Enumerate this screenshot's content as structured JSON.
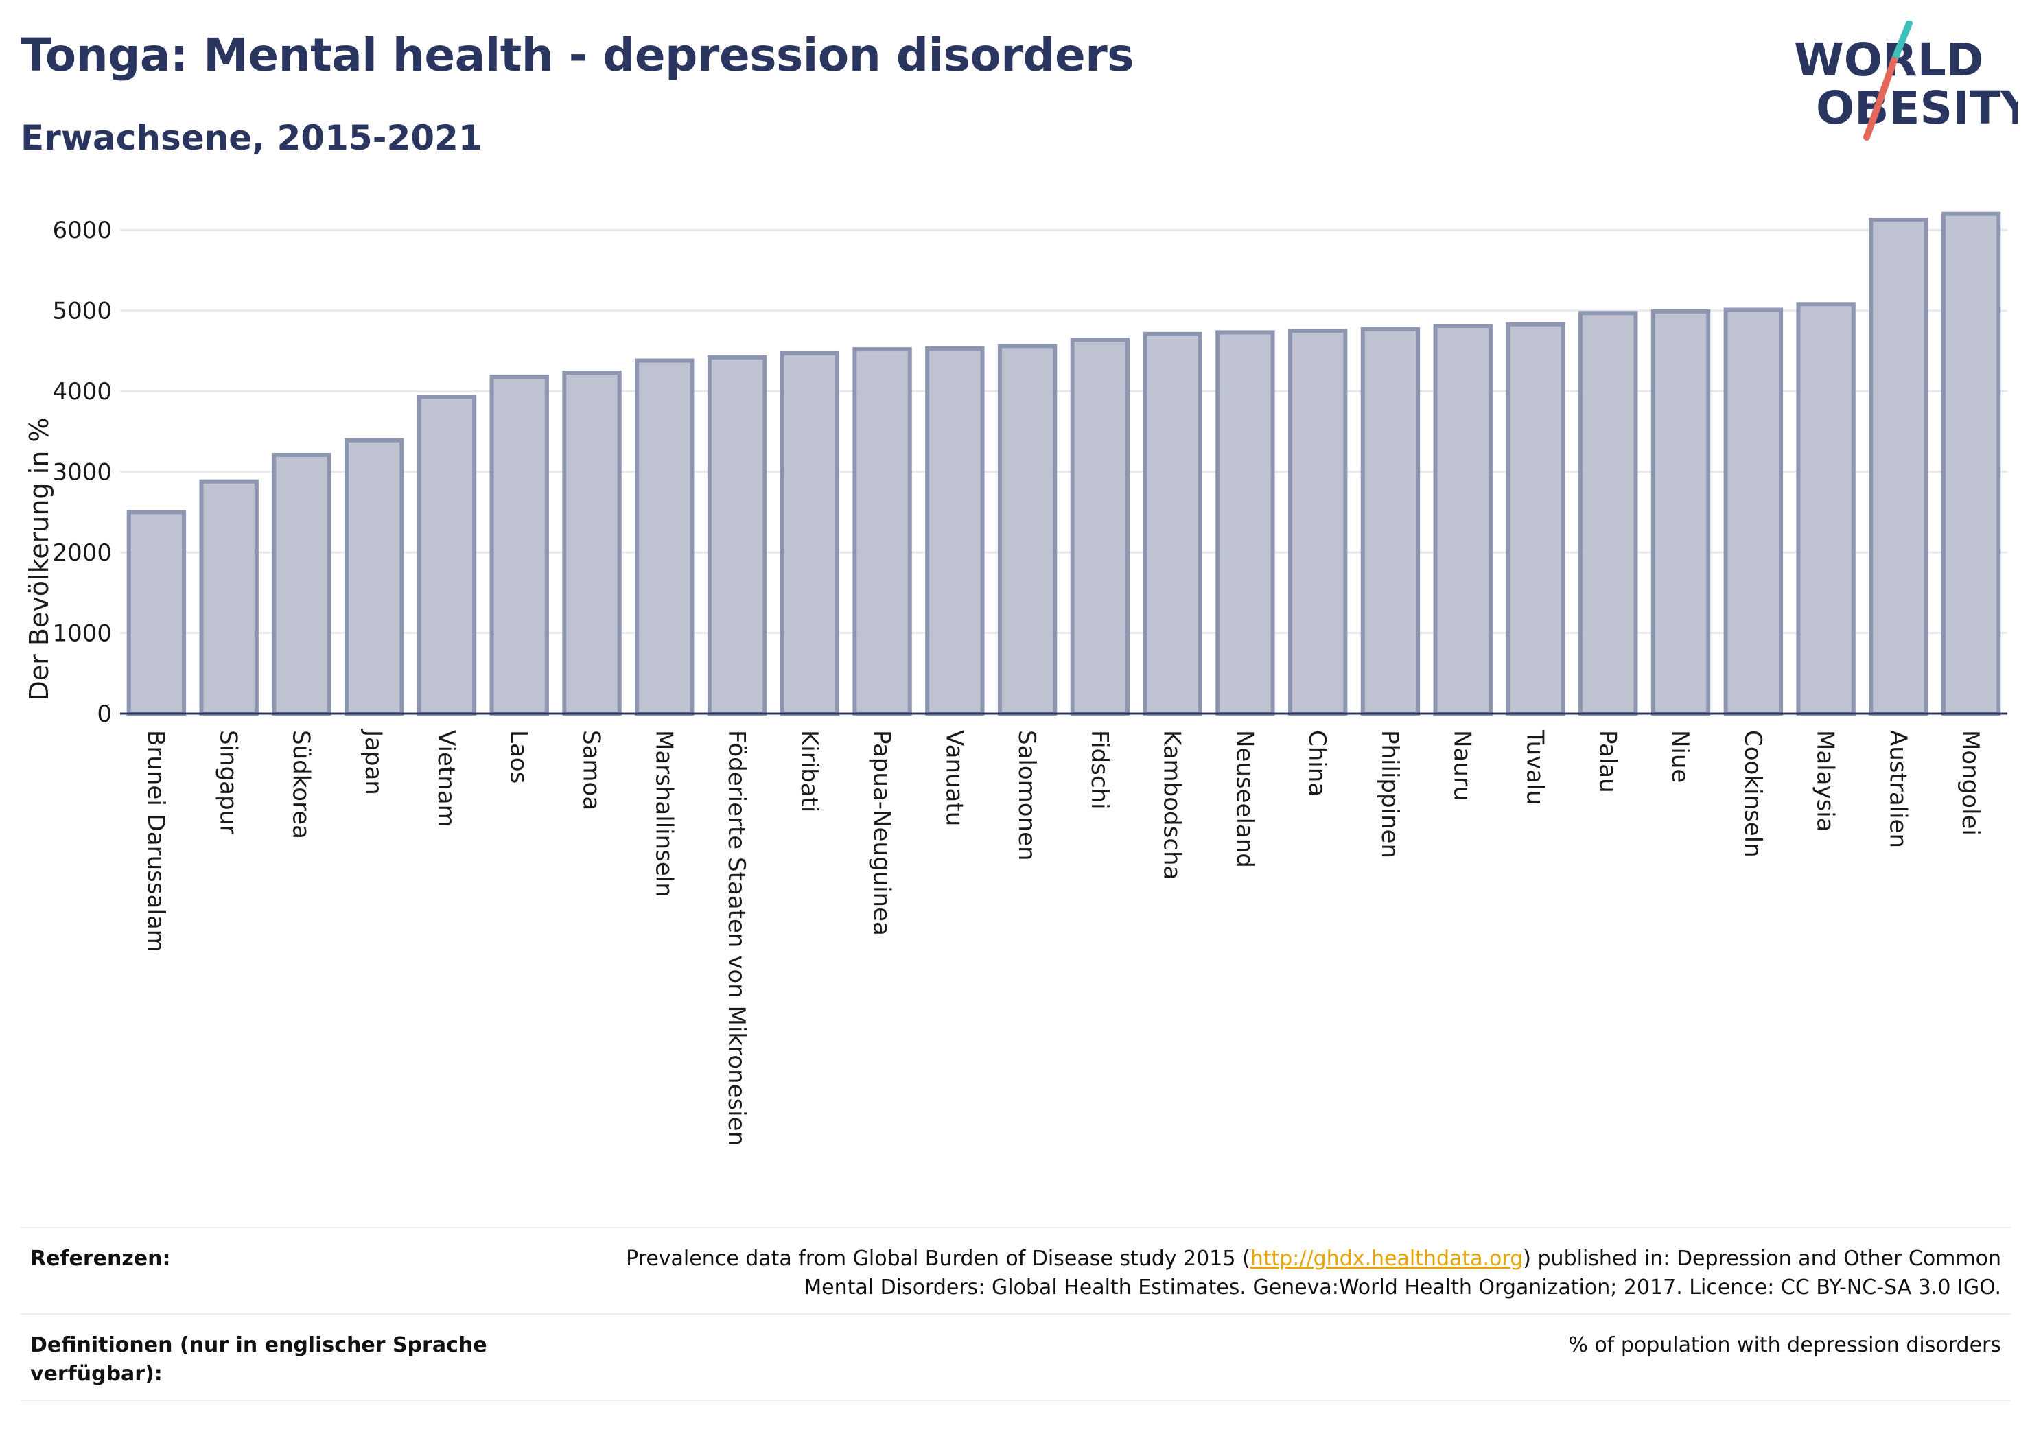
{
  "header": {
    "title": "Tonga: Mental health - depression disorders",
    "subtitle": "Erwachsene, 2015-2021"
  },
  "logo": {
    "line1": "WORLD",
    "line2": "OBESITY",
    "colors": {
      "text": "#2b3660",
      "slash_red": "#e4685a",
      "slash_teal": "#3fbfb9"
    }
  },
  "colors": {
    "bar_fill": "#bcc0cf",
    "bar_stroke": "#8e95b0",
    "grid": "#e6e8ee",
    "axis": "#2b3660"
  },
  "chart_data": {
    "type": "bar",
    "title": "Tonga: Mental health - depression disorders",
    "subtitle": "Erwachsene, 2015-2021",
    "xlabel": "",
    "ylabel": "Der Bevölkerung in %",
    "ylim": [
      0,
      6300
    ],
    "yticks": [
      0,
      1000,
      2000,
      3000,
      4000,
      5000,
      6000
    ],
    "grid": true,
    "categories": [
      "Brunei Darussalam",
      "Singapur",
      "Südkorea",
      "Japan",
      "Vietnam",
      "Laos",
      "Samoa",
      "Marshallinseln",
      "Föderierte Staaten von Mikronesien",
      "Kiribati",
      "Papua-Neuguinea",
      "Vanuatu",
      "Salomonen",
      "Fidschi",
      "Kambodscha",
      "Neuseeland",
      "China",
      "Philippinen",
      "Nauru",
      "Tuvalu",
      "Palau",
      "Niue",
      "Cookinseln",
      "Malaysia",
      "Australien",
      "Mongolei"
    ],
    "values": [
      2500,
      2880,
      3210,
      3390,
      3930,
      4180,
      4230,
      4380,
      4420,
      4470,
      4520,
      4530,
      4560,
      4640,
      4710,
      4730,
      4750,
      4770,
      4810,
      4830,
      4970,
      4990,
      5010,
      5080,
      6130,
      6200
    ]
  },
  "footer": {
    "references_label": "Referenzen:",
    "references_pre": "Prevalence data from Global Burden of Disease study 2015 (",
    "references_link": "http://ghdx.healthdata.org",
    "references_post": ") published in: Depression and Other Common Mental Disorders: Global Health Estimates. Geneva:World Health Organization; 2017. Licence: CC BY-NC-SA 3.0 IGO.",
    "definitions_label": "Definitionen (nur in englischer Sprache verfügbar):",
    "definitions_value": "% of population with depression disorders"
  }
}
